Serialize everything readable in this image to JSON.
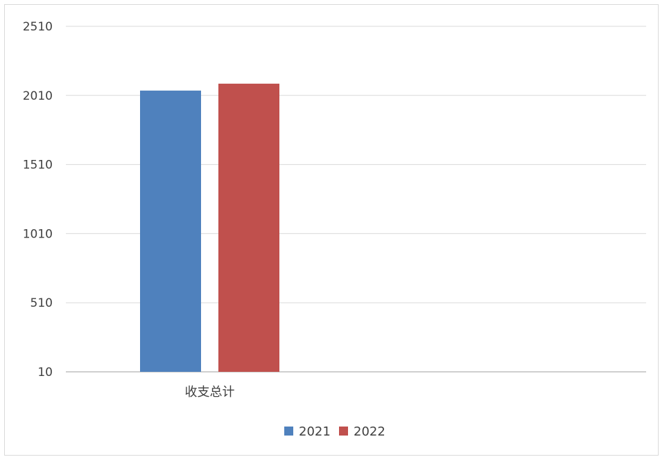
{
  "chart_data": {
    "type": "bar",
    "categories": [
      "收支总计"
    ],
    "series": [
      {
        "name": "2021",
        "values": [
          2045
        ],
        "color": "#4f81bd"
      },
      {
        "name": "2022",
        "values": [
          2095
        ],
        "color": "#c0504d"
      }
    ],
    "ylim": [
      10,
      2510
    ],
    "yticks": [
      10,
      510,
      1010,
      1510,
      2010,
      2510
    ],
    "ytick_labels": [
      "10",
      "510",
      "1010",
      "1510",
      "2010",
      "2510"
    ],
    "grid": true,
    "legend_position": "bottom"
  }
}
